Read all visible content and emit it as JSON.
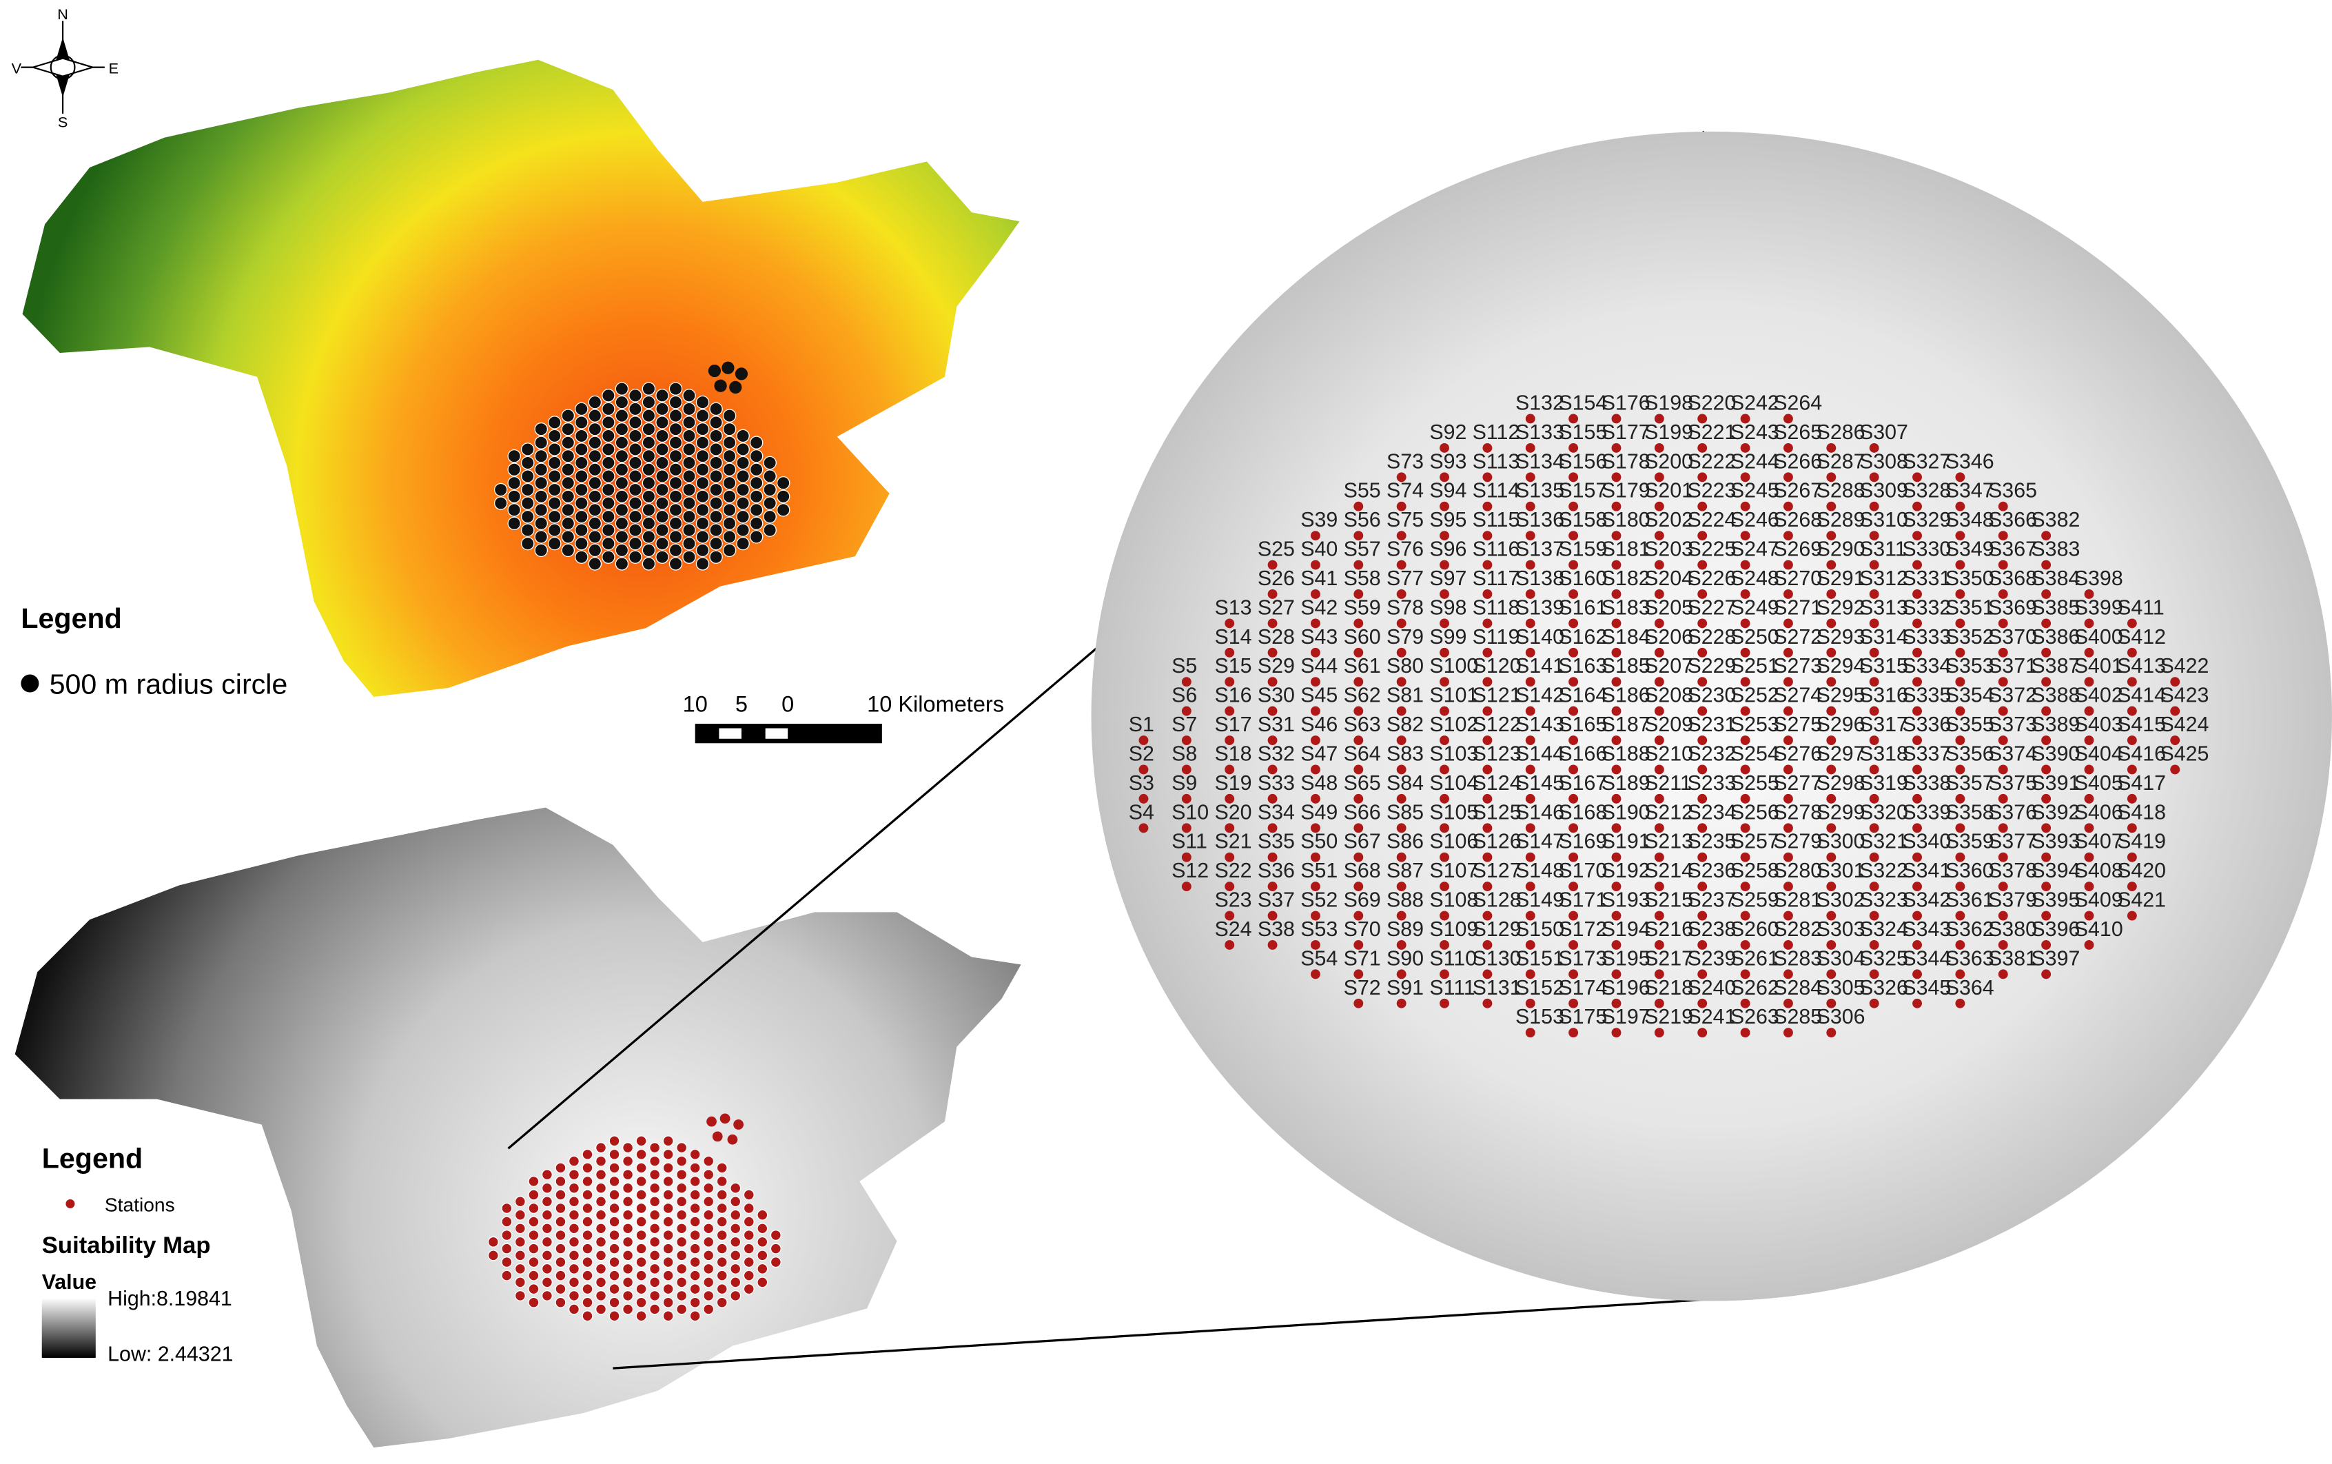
{
  "compass": {
    "n": "N",
    "s": "S",
    "e": "E",
    "w": "V"
  },
  "top_legend": {
    "title": "Legend",
    "item": "500 m radius circle"
  },
  "scale_bar": {
    "labels": [
      "10",
      "5",
      "0",
      "10 Kilometers"
    ]
  },
  "bottom_legend": {
    "title": "Legend",
    "stations": "Stations",
    "map_title": "Suitability Map",
    "value": "Value",
    "high": "High:8.19841",
    "low": "Low: 2.44321"
  },
  "zoom": {
    "stations": [
      "S1",
      "S2",
      "S3",
      "S4",
      "S5",
      "S6",
      "S7",
      "S8",
      "S9",
      "S10",
      "S11",
      "S12",
      "S13",
      "S14",
      "S15",
      "S16",
      "S17",
      "S18",
      "S19",
      "S20",
      "S21",
      "S22",
      "S23",
      "S24",
      "S25",
      "S26",
      "S27",
      "S28",
      "S29",
      "S30",
      "S31",
      "S32",
      "S33",
      "S34",
      "S35",
      "S36",
      "S37",
      "S38",
      "S39",
      "S40",
      "S41",
      "S42",
      "S43",
      "S44",
      "S45",
      "S46",
      "S47",
      "S48",
      "S49",
      "S50",
      "S51",
      "S52",
      "S53",
      "S54",
      "S55",
      "S56",
      "S57",
      "S58",
      "S59",
      "S60",
      "S61",
      "S62",
      "S63",
      "S64",
      "S65",
      "S66",
      "S67",
      "S68",
      "S69",
      "S70",
      "S71",
      "S72",
      "S73",
      "S74",
      "S75",
      "S76",
      "S77",
      "S78",
      "S79",
      "S80",
      "S81",
      "S82",
      "S83",
      "S84",
      "S85",
      "S86",
      "S87",
      "S88",
      "S89",
      "S90",
      "S91",
      "S92",
      "S93",
      "S94",
      "S95",
      "S96",
      "S97",
      "S98",
      "S99",
      "S100",
      "S101",
      "S102",
      "S103",
      "S104",
      "S105",
      "S106",
      "S107",
      "S108",
      "S109",
      "S110",
      "S111",
      "S112",
      "S113",
      "S114",
      "S115",
      "S116",
      "S117",
      "S118",
      "S119",
      "S120",
      "S121",
      "S122",
      "S123",
      "S124",
      "S125",
      "S126",
      "S127",
      "S128",
      "S129",
      "S130",
      "S131",
      "S132",
      "S133",
      "S134",
      "S135",
      "S136",
      "S137",
      "S138",
      "S139",
      "S140",
      "S141",
      "S142",
      "S143",
      "S144",
      "S145",
      "S146",
      "S147",
      "S148",
      "S149",
      "S150",
      "S151",
      "S152",
      "S153",
      "S154",
      "S155",
      "S156",
      "S157",
      "S158",
      "S159",
      "S160",
      "S161",
      "S162",
      "S163",
      "S164",
      "S165",
      "S166",
      "S167",
      "S168",
      "S169",
      "S170",
      "S171",
      "S172",
      "S173",
      "S174",
      "S175",
      "S176",
      "S177",
      "S178",
      "S179",
      "S180",
      "S181",
      "S182",
      "S183",
      "S184",
      "S185",
      "S186",
      "S187",
      "S188",
      "S189",
      "S190",
      "S191",
      "S192",
      "S193",
      "S194",
      "S195",
      "S196",
      "S197",
      "S198",
      "S199",
      "S200",
      "S201",
      "S202",
      "S203",
      "S204",
      "S205",
      "S206",
      "S207",
      "S208",
      "S209",
      "S210",
      "S211",
      "S212",
      "S213",
      "S214",
      "S215",
      "S216",
      "S217",
      "S218",
      "S219",
      "S220",
      "S221",
      "S222",
      "S223",
      "S224",
      "S225",
      "S226",
      "S227",
      "S228",
      "S229",
      "S230",
      "S231",
      "S232",
      "S233",
      "S234",
      "S235",
      "S236",
      "S237",
      "S238",
      "S239",
      "S240",
      "S241",
      "S242",
      "S243",
      "S244",
      "S245",
      "S246",
      "S247",
      "S248",
      "S249",
      "S250",
      "S251",
      "S252",
      "S253",
      "S254",
      "S255",
      "S256",
      "S257",
      "S258",
      "S259",
      "S260",
      "S261",
      "S262",
      "S263",
      "S264",
      "S265",
      "S266",
      "S267",
      "S268",
      "S269",
      "S270",
      "S271",
      "S272",
      "S273",
      "S274",
      "S275",
      "S276",
      "S277",
      "S278",
      "S279",
      "S280",
      "S281",
      "S282",
      "S283",
      "S284",
      "S285",
      "S286",
      "S287",
      "S288",
      "S289",
      "S290",
      "S291",
      "S292",
      "S293",
      "S294",
      "S295",
      "S296",
      "S297",
      "S298",
      "S299",
      "S300",
      "S301",
      "S302",
      "S303",
      "S304",
      "S305",
      "S306",
      "S307",
      "S308",
      "S309",
      "S310",
      "S311",
      "S312",
      "S313",
      "S314",
      "S315",
      "S316",
      "S317",
      "S318",
      "S319",
      "S320",
      "S321",
      "S322",
      "S323",
      "S324",
      "S325",
      "S326",
      "S327",
      "S328",
      "S329",
      "S330",
      "S331",
      "S332",
      "S333",
      "S334",
      "S335",
      "S336",
      "S337",
      "S338",
      "S339",
      "S340",
      "S341",
      "S342",
      "S343",
      "S344",
      "S345",
      "S346",
      "S347",
      "S348",
      "S349",
      "S350",
      "S351",
      "S352",
      "S353",
      "S354",
      "S355",
      "S356",
      "S357",
      "S358",
      "S359",
      "S360",
      "S361",
      "S362",
      "S363",
      "S364",
      "S365",
      "S366",
      "S367",
      "S368",
      "S369",
      "S370",
      "S371",
      "S372",
      "S373",
      "S374",
      "S375",
      "S376",
      "S377",
      "S378",
      "S379",
      "S380",
      "S381",
      "S382",
      "S383",
      "S384",
      "S385",
      "S386",
      "S387",
      "S388",
      "S389",
      "S390",
      "S391",
      "S392",
      "S393",
      "S394",
      "S395",
      "S396",
      "S397",
      "S398",
      "S399",
      "S400",
      "S401",
      "S402",
      "S403",
      "S404",
      "S405",
      "S406",
      "S407",
      "S408",
      "S409",
      "S410",
      "S411",
      "S412",
      "S413",
      "S414",
      "S415",
      "S416",
      "S417",
      "S418",
      "S419",
      "S420",
      "S421",
      "S422",
      "S423",
      "S424",
      "S425"
    ]
  }
}
